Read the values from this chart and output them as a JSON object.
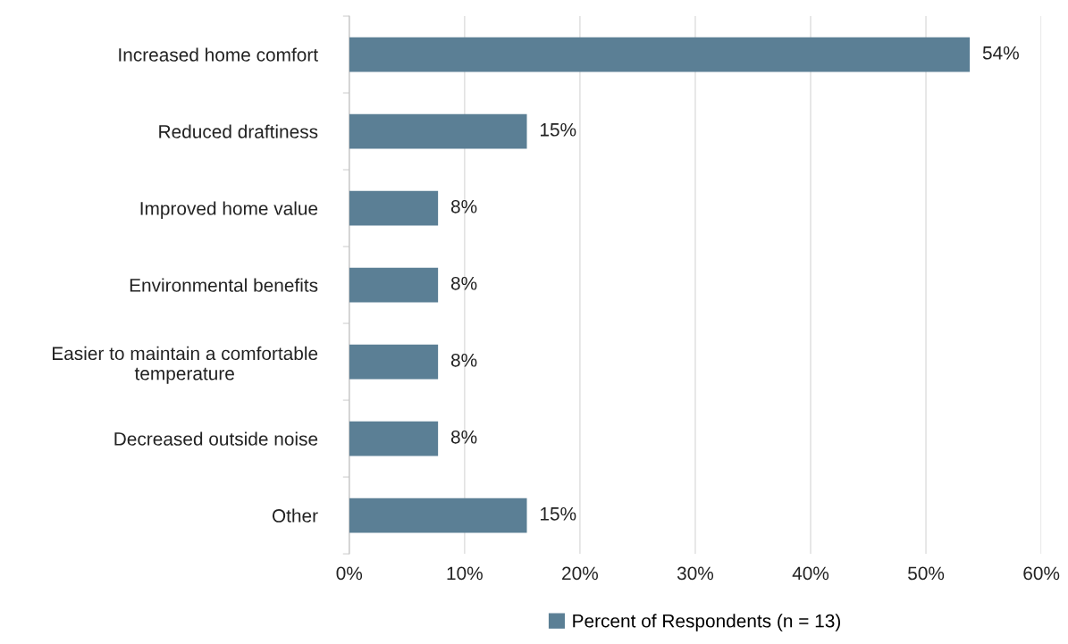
{
  "chart_data": {
    "type": "bar",
    "orientation": "horizontal",
    "categories": [
      "Increased home comfort",
      "Reduced draftiness",
      "Improved home value",
      "Environmental benefits",
      "Easier to maintain a comfortable temperature",
      "Decreased outside noise",
      "Other"
    ],
    "series": [
      {
        "name": "Percent of Respondents (n = 13)",
        "color": "#5b7f95",
        "values": [
          53.8,
          15.4,
          7.7,
          7.7,
          7.7,
          7.7,
          15.4
        ],
        "value_labels": [
          "54%",
          "15%",
          "8%",
          "8%",
          "8%",
          "8%",
          "15%"
        ]
      }
    ],
    "xlim": [
      0,
      60
    ],
    "xticks": [
      {
        "value": 0,
        "label": "0%"
      },
      {
        "value": 10,
        "label": "10%"
      },
      {
        "value": 20,
        "label": "20%"
      },
      {
        "value": 30,
        "label": "30%"
      },
      {
        "value": 40,
        "label": "40%"
      },
      {
        "value": 50,
        "label": "50%"
      },
      {
        "value": 60,
        "label": "60%"
      }
    ],
    "grid": "x",
    "legend": "bottom"
  }
}
